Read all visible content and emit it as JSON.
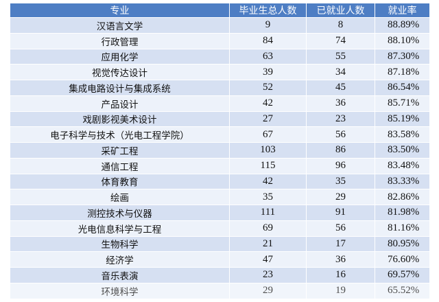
{
  "table": {
    "headers": [
      "专业",
      "毕业生总人数",
      "已就业人数",
      "就业率"
    ],
    "rows": [
      [
        "汉语言文学",
        "9",
        "8",
        "88.89%"
      ],
      [
        "行政管理",
        "84",
        "74",
        "88.10%"
      ],
      [
        "应用化学",
        "63",
        "55",
        "87.30%"
      ],
      [
        "视觉传达设计",
        "39",
        "34",
        "87.18%"
      ],
      [
        "集成电路设计与集成系统",
        "52",
        "45",
        "86.54%"
      ],
      [
        "产品设计",
        "42",
        "36",
        "85.71%"
      ],
      [
        "戏剧影视美术设计",
        "27",
        "23",
        "85.19%"
      ],
      [
        "电子科学与技术（光电工程学院）",
        "67",
        "56",
        "83.58%"
      ],
      [
        "采矿工程",
        "103",
        "86",
        "83.50%"
      ],
      [
        "通信工程",
        "115",
        "96",
        "83.48%"
      ],
      [
        "体育教育",
        "42",
        "35",
        "83.33%"
      ],
      [
        "绘画",
        "35",
        "29",
        "82.86%"
      ],
      [
        "测控技术与仪器",
        "111",
        "91",
        "81.98%"
      ],
      [
        "光电信息科学与工程",
        "69",
        "56",
        "81.16%"
      ],
      [
        "生物科学",
        "21",
        "17",
        "80.95%"
      ],
      [
        "经济学",
        "47",
        "36",
        "76.60%"
      ],
      [
        "音乐表演",
        "23",
        "16",
        "69.57%"
      ],
      [
        "环境科学",
        "29",
        "19",
        "65.52%"
      ]
    ]
  },
  "colors": {
    "header_bg": "#4e7ec4",
    "row_odd": "#d6e0f2",
    "row_even": "#edf2fa"
  }
}
